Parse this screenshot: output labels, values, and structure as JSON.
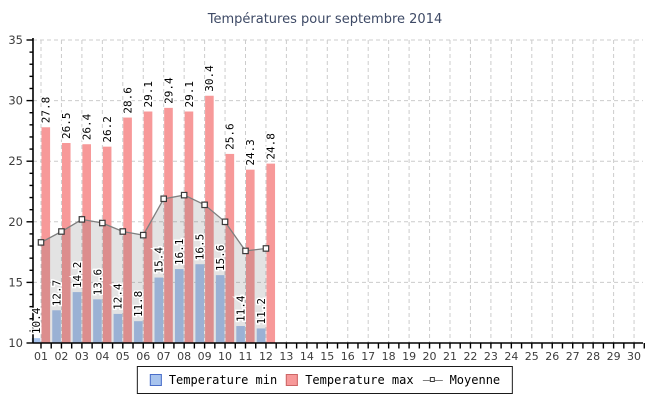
{
  "title": "Températures pour septembre 2014",
  "legend": {
    "min_label": "Temperature min",
    "max_label": "Temperature max",
    "moyenne_label": "Moyenne"
  },
  "colors": {
    "min_bar": "#A8C4EE",
    "min_swatch_border": "#4A6EC9",
    "max_bar": "#F79999",
    "max_swatch_border": "#CC6666",
    "moyenne_line": "#7F7F7F",
    "marker_border": "#3A3A3A",
    "marker_fill": "#FFFFFF",
    "area_fill": "rgba(80,80,80,0.16)",
    "grid": "#CCCCCC",
    "axis": "#000000",
    "title_color": "#3E4A66",
    "tick_label_color": "#3d3d3d",
    "value_label_color": "#000000"
  },
  "chart_data": {
    "type": "bar",
    "subtype": "grouped bars + average line with gray area fill",
    "title": "Températures pour septembre 2014",
    "x_labels": [
      "01",
      "02",
      "03",
      "04",
      "05",
      "06",
      "07",
      "08",
      "09",
      "10",
      "11",
      "12",
      "13",
      "14",
      "15",
      "16",
      "17",
      "18",
      "19",
      "20",
      "21",
      "22",
      "23",
      "24",
      "25",
      "26",
      "27",
      "28",
      "29",
      "30"
    ],
    "days_with_data": [
      1,
      2,
      3,
      4,
      5,
      6,
      7,
      8,
      9,
      10,
      11,
      12
    ],
    "series": [
      {
        "name": "Temperature min",
        "type": "bar",
        "values": [
          10.4,
          12.7,
          14.2,
          13.6,
          12.4,
          11.8,
          15.4,
          16.1,
          16.5,
          15.6,
          11.4,
          11.2
        ]
      },
      {
        "name": "Temperature max",
        "type": "bar",
        "values": [
          27.8,
          26.5,
          26.4,
          26.2,
          28.6,
          29.1,
          29.4,
          29.1,
          30.4,
          25.6,
          24.3,
          24.8
        ]
      },
      {
        "name": "Moyenne",
        "type": "line",
        "values": [
          18.3,
          19.2,
          20.2,
          19.9,
          19.2,
          18.9,
          21.9,
          22.2,
          21.4,
          20.0,
          17.6,
          17.8
        ]
      }
    ],
    "ylim": [
      10,
      35
    ],
    "y_ticks": [
      10,
      15,
      20,
      25,
      30,
      35
    ],
    "grid": "dashed, vertical per day and horizontal per 5 units",
    "legend_position": "bottom-center",
    "value_labels": "shown rotated 90° above each bar"
  }
}
